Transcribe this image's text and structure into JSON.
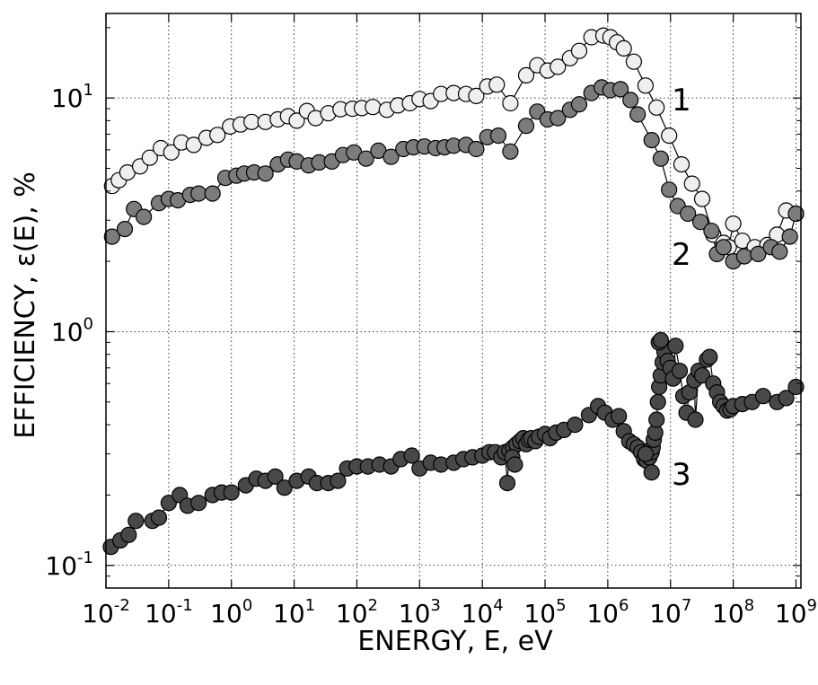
{
  "chart_data": {
    "type": "scatter",
    "xscale": "log",
    "yscale": "log",
    "xlim": [
      0.01,
      1200000000
    ],
    "ylim": [
      0.08,
      23
    ],
    "grid": true,
    "xlabel": "ENERGY,  E,  eV",
    "ylabel": "EFFICIENCY,  ε(E),  %",
    "x_ticks": [
      {
        "base": "10",
        "exp": "-2"
      },
      {
        "base": "10",
        "exp": "-1"
      },
      {
        "base": "10",
        "exp": "0"
      },
      {
        "base": "10",
        "exp": "1"
      },
      {
        "base": "10",
        "exp": "2"
      },
      {
        "base": "10",
        "exp": "3"
      },
      {
        "base": "10",
        "exp": "4"
      },
      {
        "base": "10",
        "exp": "5"
      },
      {
        "base": "10",
        "exp": "6"
      },
      {
        "base": "10",
        "exp": "7"
      },
      {
        "base": "10",
        "exp": "8"
      },
      {
        "base": "10",
        "exp": "9"
      }
    ],
    "y_ticks": [
      {
        "base": "10",
        "exp": "-1"
      },
      {
        "base": "10",
        "exp": "0"
      },
      {
        "base": "10",
        "exp": "1"
      }
    ],
    "series": [
      {
        "name": "1",
        "fill": "#efefef",
        "points": [
          [
            0.0125,
            4.2
          ],
          [
            0.016,
            4.45
          ],
          [
            0.022,
            4.8
          ],
          [
            0.035,
            5.1
          ],
          [
            0.05,
            5.55
          ],
          [
            0.075,
            6.1
          ],
          [
            0.11,
            5.85
          ],
          [
            0.16,
            6.45
          ],
          [
            0.25,
            6.3
          ],
          [
            0.4,
            6.75
          ],
          [
            0.6,
            6.95
          ],
          [
            0.95,
            7.55
          ],
          [
            1.4,
            7.7
          ],
          [
            2.1,
            7.9
          ],
          [
            3.5,
            7.9
          ],
          [
            5.5,
            8.1
          ],
          [
            8,
            8.35
          ],
          [
            11,
            8.0
          ],
          [
            16,
            8.8
          ],
          [
            22,
            8.2
          ],
          [
            35,
            8.6
          ],
          [
            55,
            8.95
          ],
          [
            85,
            9.0
          ],
          [
            120,
            9.05
          ],
          [
            180,
            9.15
          ],
          [
            300,
            8.9
          ],
          [
            450,
            9.3
          ],
          [
            700,
            9.5
          ],
          [
            1000,
            9.9
          ],
          [
            1500,
            9.7
          ],
          [
            2200,
            10.4
          ],
          [
            3500,
            10.5
          ],
          [
            5500,
            10.4
          ],
          [
            8000,
            10.2
          ],
          [
            12000,
            11.2
          ],
          [
            17000,
            11.4
          ],
          [
            28000,
            9.5
          ],
          [
            50000,
            12.5
          ],
          [
            75000,
            13.8
          ],
          [
            110000,
            13.1
          ],
          [
            160000,
            13.6
          ],
          [
            250000,
            14.8
          ],
          [
            350000,
            15.9
          ],
          [
            550000,
            18.2
          ],
          [
            850000,
            18.5
          ],
          [
            1100000,
            18.2
          ],
          [
            1400000,
            17.3
          ],
          [
            1800000,
            16.3
          ],
          [
            2600000,
            14.3
          ],
          [
            4000000,
            11.3
          ],
          [
            6000000,
            9.1
          ],
          [
            9500000,
            6.9
          ],
          [
            15000000,
            5.2
          ],
          [
            22000000,
            4.3
          ],
          [
            32000000,
            3.7
          ],
          [
            48000000,
            2.6
          ],
          [
            70000000,
            2.4
          ],
          [
            85000000,
            2.3
          ],
          [
            100000000,
            2.9
          ],
          [
            140000000,
            2.45
          ],
          [
            220000000,
            2.3
          ],
          [
            350000000,
            2.35
          ],
          [
            500000000,
            2.6
          ],
          [
            700000000,
            3.3
          ],
          [
            1000000000,
            3.2
          ]
        ]
      },
      {
        "name": "2",
        "fill": "#7c7c7c",
        "points": [
          [
            0.0125,
            2.55
          ],
          [
            0.02,
            2.75
          ],
          [
            0.028,
            3.35
          ],
          [
            0.04,
            3.1
          ],
          [
            0.07,
            3.55
          ],
          [
            0.1,
            3.7
          ],
          [
            0.14,
            3.65
          ],
          [
            0.22,
            3.85
          ],
          [
            0.3,
            3.9
          ],
          [
            0.5,
            3.9
          ],
          [
            0.8,
            4.55
          ],
          [
            1.2,
            4.65
          ],
          [
            1.6,
            4.75
          ],
          [
            2.3,
            4.8
          ],
          [
            3.5,
            4.75
          ],
          [
            5.5,
            5.2
          ],
          [
            8,
            5.45
          ],
          [
            11,
            5.35
          ],
          [
            17,
            5.15
          ],
          [
            25,
            5.3
          ],
          [
            40,
            5.35
          ],
          [
            60,
            5.7
          ],
          [
            90,
            5.85
          ],
          [
            140,
            5.5
          ],
          [
            220,
            5.95
          ],
          [
            350,
            5.6
          ],
          [
            550,
            6.05
          ],
          [
            800,
            6.15
          ],
          [
            1200,
            6.2
          ],
          [
            1800,
            6.1
          ],
          [
            2500,
            6.15
          ],
          [
            3500,
            6.25
          ],
          [
            5500,
            6.3
          ],
          [
            8000,
            6.05
          ],
          [
            12000,
            6.8
          ],
          [
            18000,
            6.9
          ],
          [
            28000,
            5.9
          ],
          [
            50000,
            7.6
          ],
          [
            75000,
            8.75
          ],
          [
            110000,
            8.1
          ],
          [
            160000,
            8.2
          ],
          [
            250000,
            8.9
          ],
          [
            350000,
            9.4
          ],
          [
            550000,
            10.5
          ],
          [
            800000,
            11.1
          ],
          [
            1100000,
            10.8
          ],
          [
            1600000,
            10.9
          ],
          [
            2300000,
            9.8
          ],
          [
            3000000,
            8.5
          ],
          [
            5000000,
            6.6
          ],
          [
            7000000,
            5.5
          ],
          [
            9500000,
            4.05
          ],
          [
            13000000,
            3.45
          ],
          [
            19000000,
            3.2
          ],
          [
            30000000,
            2.95
          ],
          [
            45000000,
            2.7
          ],
          [
            55000000,
            2.15
          ],
          [
            70000000,
            2.3
          ],
          [
            100000000,
            2.0
          ],
          [
            150000000,
            2.1
          ],
          [
            250000000,
            2.15
          ],
          [
            400000000,
            2.3
          ],
          [
            550000000,
            2.2
          ],
          [
            800000000,
            2.55
          ],
          [
            1000000000,
            3.2
          ]
        ]
      },
      {
        "name": "3",
        "fill": "#484848",
        "points": [
          [
            0.012,
            0.12
          ],
          [
            0.017,
            0.128
          ],
          [
            0.023,
            0.135
          ],
          [
            0.03,
            0.155
          ],
          [
            0.055,
            0.155
          ],
          [
            0.07,
            0.16
          ],
          [
            0.1,
            0.185
          ],
          [
            0.15,
            0.2
          ],
          [
            0.2,
            0.18
          ],
          [
            0.3,
            0.185
          ],
          [
            0.5,
            0.2
          ],
          [
            0.7,
            0.205
          ],
          [
            1.0,
            0.205
          ],
          [
            1.7,
            0.22
          ],
          [
            2.5,
            0.235
          ],
          [
            3.5,
            0.23
          ],
          [
            5,
            0.24
          ],
          [
            7,
            0.215
          ],
          [
            11,
            0.23
          ],
          [
            17,
            0.24
          ],
          [
            23,
            0.225
          ],
          [
            35,
            0.225
          ],
          [
            50,
            0.23
          ],
          [
            70,
            0.26
          ],
          [
            100,
            0.265
          ],
          [
            150,
            0.265
          ],
          [
            230,
            0.27
          ],
          [
            350,
            0.265
          ],
          [
            500,
            0.285
          ],
          [
            750,
            0.295
          ],
          [
            1000,
            0.26
          ],
          [
            1500,
            0.275
          ],
          [
            2200,
            0.27
          ],
          [
            3500,
            0.275
          ],
          [
            5000,
            0.285
          ],
          [
            7000,
            0.29
          ],
          [
            10000,
            0.295
          ],
          [
            13000,
            0.305
          ],
          [
            16000,
            0.305
          ],
          [
            20000,
            0.29
          ],
          [
            23000,
            0.305
          ],
          [
            27000,
            0.31
          ],
          [
            31000,
            0.32
          ],
          [
            35000,
            0.33
          ],
          [
            40000,
            0.34
          ],
          [
            45000,
            0.35
          ],
          [
            50000,
            0.33
          ],
          [
            55000,
            0.345
          ],
          [
            60000,
            0.35
          ],
          [
            70000,
            0.34
          ],
          [
            80000,
            0.355
          ],
          [
            100000,
            0.365
          ],
          [
            120000,
            0.35
          ],
          [
            150000,
            0.37
          ],
          [
            200000,
            0.38
          ],
          [
            300000,
            0.4
          ],
          [
            500000,
            0.44
          ],
          [
            700000,
            0.48
          ],
          [
            900000,
            0.45
          ],
          [
            1200000,
            0.42
          ],
          [
            1500000,
            0.435
          ],
          [
            1800000,
            0.375
          ],
          [
            2200000,
            0.34
          ],
          [
            2600000,
            0.33
          ],
          [
            3000000,
            0.32
          ],
          [
            3400000,
            0.305
          ],
          [
            3800000,
            0.285
          ],
          [
            4200000,
            0.28
          ],
          [
            4600000,
            0.29
          ],
          [
            5000000,
            0.305
          ],
          [
            5200000,
            0.32
          ],
          [
            5400000,
            0.345
          ],
          [
            5700000,
            0.37
          ],
          [
            6000000,
            0.42
          ],
          [
            6300000,
            0.5
          ],
          [
            6600000,
            0.58
          ],
          [
            7000000,
            0.65
          ],
          [
            7500000,
            0.74
          ],
          [
            8000000,
            0.82
          ],
          [
            9000000,
            0.75
          ],
          [
            10000000,
            0.7
          ],
          [
            11000000,
            0.63
          ],
          [
            12000000,
            0.87
          ],
          [
            14000000,
            0.68
          ],
          [
            16000000,
            0.53
          ],
          [
            18000000,
            0.45
          ],
          [
            20000000,
            0.55
          ],
          [
            24000000,
            0.62
          ],
          [
            28000000,
            0.68
          ],
          [
            32000000,
            0.65
          ],
          [
            38000000,
            0.76
          ],
          [
            42000000,
            0.78
          ],
          [
            48000000,
            0.6
          ],
          [
            55000000,
            0.55
          ],
          [
            62000000,
            0.5
          ],
          [
            70000000,
            0.48
          ],
          [
            80000000,
            0.46
          ],
          [
            90000000,
            0.465
          ],
          [
            100000000,
            0.48
          ],
          [
            140000000,
            0.49
          ],
          [
            200000000,
            0.5
          ],
          [
            300000000,
            0.53
          ],
          [
            500000000,
            0.5
          ],
          [
            700000000,
            0.52
          ],
          [
            1000000000,
            0.58
          ],
          [
            25000000,
            0.42
          ],
          [
            5000000,
            0.25
          ],
          [
            25000,
            0.225
          ],
          [
            30000,
            0.29
          ],
          [
            33000,
            0.27
          ],
          [
            4000000,
            0.3
          ],
          [
            6500000,
            0.9
          ],
          [
            7000000,
            0.92
          ]
        ]
      }
    ]
  }
}
